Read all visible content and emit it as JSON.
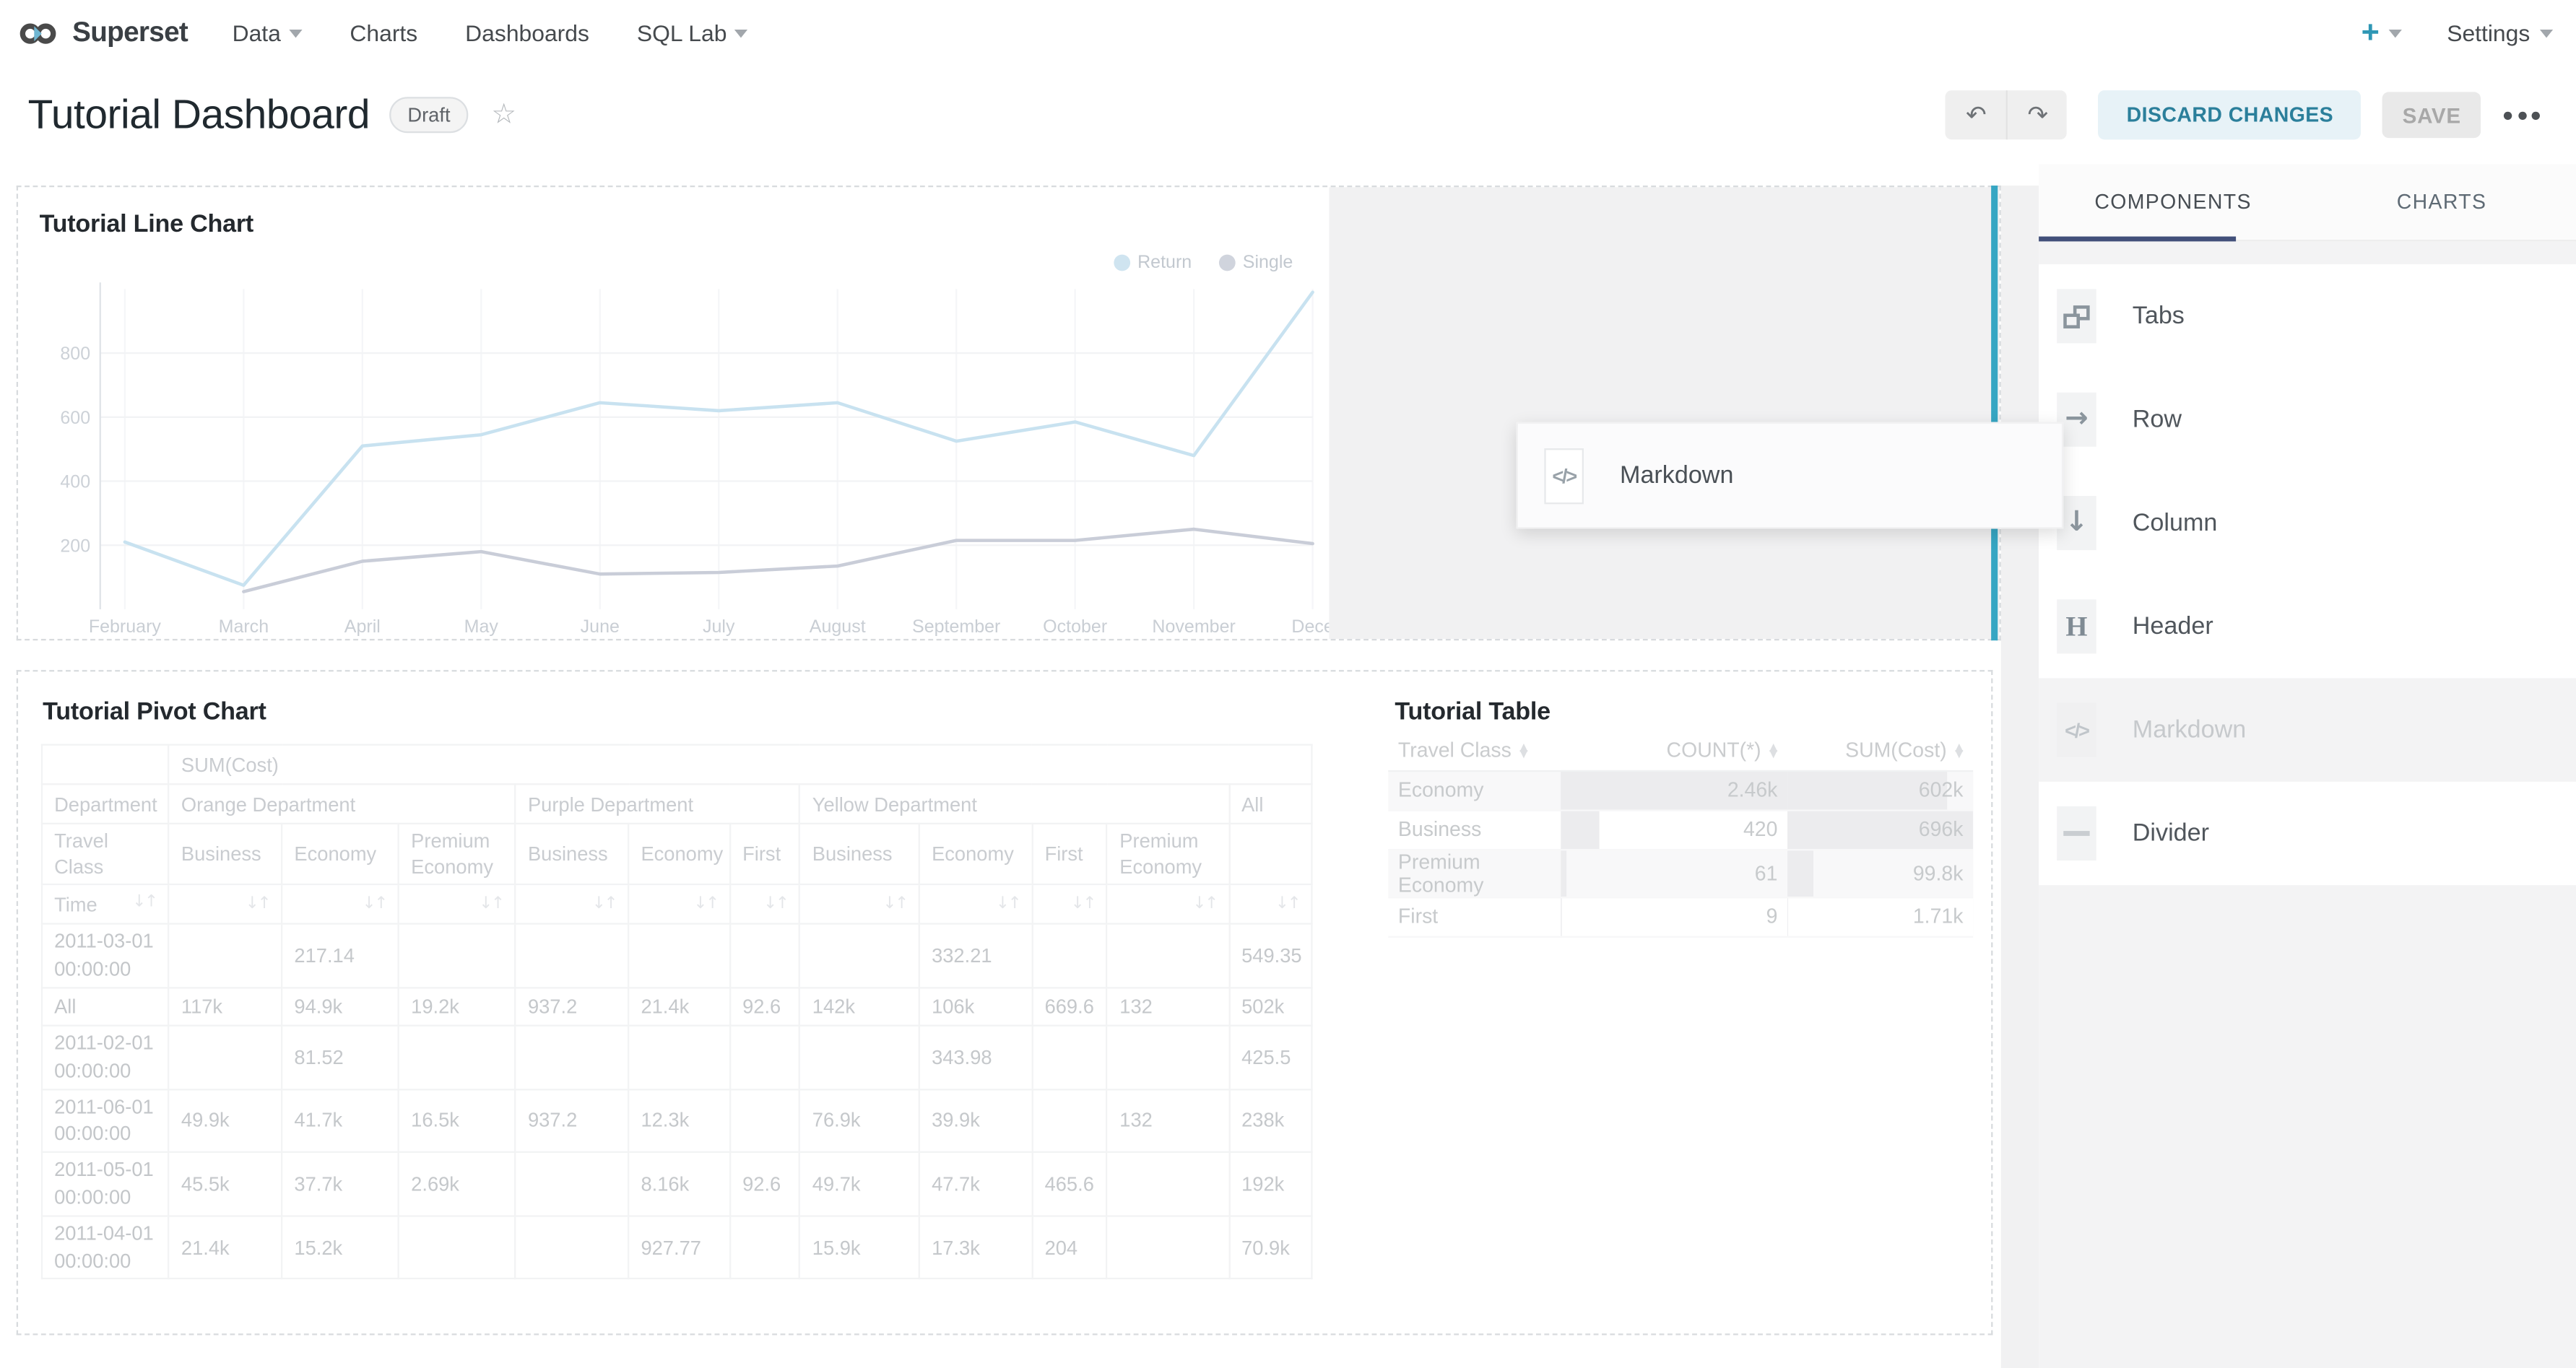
{
  "navbar": {
    "brand": "Superset",
    "logo_icon": "superset-infinity-logo",
    "items": [
      {
        "label": "Data",
        "caret": true
      },
      {
        "label": "Charts",
        "caret": false
      },
      {
        "label": "Dashboards",
        "caret": false
      },
      {
        "label": "SQL Lab",
        "caret": true
      }
    ],
    "new_button_label": "+",
    "settings_label": "Settings"
  },
  "header": {
    "title": "Tutorial Dashboard",
    "status_badge": "Draft",
    "favorite_icon": "star-outline",
    "undo_icon": "↶",
    "redo_icon": "↷",
    "discard_label": "DISCARD CHANGES",
    "save_label": "SAVE",
    "more_icon": "ellipsis"
  },
  "drag_preview": {
    "label": "Markdown",
    "icon": "code-markdown-icon"
  },
  "sidebar": {
    "tabs": [
      {
        "label": "COMPONENTS",
        "active": true
      },
      {
        "label": "CHARTS",
        "active": false
      }
    ],
    "components": [
      {
        "label": "Tabs",
        "icon": "tabs-icon",
        "ghost": false
      },
      {
        "label": "Row",
        "icon": "row-arrow-icon",
        "ghost": false
      },
      {
        "label": "Column",
        "icon": "column-arrow-icon",
        "ghost": false
      },
      {
        "label": "Header",
        "icon": "header-icon",
        "ghost": false
      },
      {
        "label": "Markdown",
        "icon": "code-markdown-icon",
        "ghost": true
      },
      {
        "label": "Divider",
        "icon": "divider-icon",
        "ghost": false
      }
    ]
  },
  "accent_colors": {
    "primary_teal": "#36a6c3",
    "discard_bg": "#e7f2f7",
    "discard_text": "#2b7f9b",
    "tab_ink": "#42507a"
  },
  "chart_data": [
    {
      "type": "line",
      "title": "Tutorial Line Chart",
      "x": [
        "February",
        "March",
        "April",
        "May",
        "June",
        "July",
        "August",
        "September",
        "October",
        "November",
        "Dece"
      ],
      "series": [
        {
          "name": "Return",
          "color": "#c8e2f0",
          "dot_color": "#cfe4f0",
          "values": [
            210,
            75,
            510,
            545,
            645,
            620,
            645,
            525,
            585,
            480,
            990
          ]
        },
        {
          "name": "Single",
          "color": "#c9cdd8",
          "dot_color": "#d0d4dd",
          "values": [
            null,
            55,
            150,
            180,
            110,
            115,
            135,
            215,
            215,
            250,
            205
          ]
        }
      ],
      "ylim": [
        0,
        1000
      ],
      "yticks": [
        200,
        400,
        600,
        800
      ],
      "grid": true,
      "legend_position": "top-right"
    },
    {
      "type": "table",
      "title": "Tutorial Pivot Chart",
      "metric_header": "SUM(Cost)",
      "col_groups": [
        {
          "label": "Department",
          "span": 1
        },
        {
          "label": "Orange Department",
          "span": 3
        },
        {
          "label": "Purple Department",
          "span": 3
        },
        {
          "label": "Yellow Department",
          "span": 4
        },
        {
          "label": "All",
          "span": 1
        }
      ],
      "col_leaves": [
        "Travel Class",
        "Business",
        "Economy",
        "Premium Economy",
        "Business",
        "Economy",
        "First",
        "Business",
        "Economy",
        "First",
        "Premium Economy",
        ""
      ],
      "sort_row_label": "Time",
      "rows": [
        {
          "label": "2011-03-01 00:00:00",
          "values": [
            "",
            "217.14",
            "",
            "",
            "",
            "",
            "",
            "332.21",
            "",
            "",
            "549.35"
          ]
        },
        {
          "label": "All",
          "values": [
            "117k",
            "94.9k",
            "19.2k",
            "937.2",
            "21.4k",
            "92.6",
            "142k",
            "106k",
            "669.6",
            "132",
            "502k"
          ]
        },
        {
          "label": "2011-02-01 00:00:00",
          "values": [
            "",
            "81.52",
            "",
            "",
            "",
            "",
            "",
            "343.98",
            "",
            "",
            "425.5"
          ]
        },
        {
          "label": "2011-06-01 00:00:00",
          "values": [
            "49.9k",
            "41.7k",
            "16.5k",
            "937.2",
            "12.3k",
            "",
            "76.9k",
            "39.9k",
            "",
            "132",
            "238k"
          ]
        },
        {
          "label": "2011-05-01 00:00:00",
          "values": [
            "45.5k",
            "37.7k",
            "2.69k",
            "",
            "8.16k",
            "92.6",
            "49.7k",
            "47.7k",
            "465.6",
            "",
            "192k"
          ]
        },
        {
          "label": "2011-04-01 00:00:00",
          "values": [
            "21.4k",
            "15.2k",
            "",
            "",
            "927.77",
            "",
            "15.9k",
            "17.3k",
            "204",
            "",
            "70.9k"
          ]
        }
      ]
    },
    {
      "type": "table",
      "title": "Tutorial Table",
      "columns": [
        "Travel Class",
        "COUNT(*)",
        "SUM(Cost)"
      ],
      "rows": [
        {
          "travel_class": "Economy",
          "count": "2.46k",
          "sum": "602k",
          "count_bar": 100,
          "sum_bar": 86
        },
        {
          "travel_class": "Business",
          "count": "420",
          "sum": "696k",
          "count_bar": 17,
          "sum_bar": 100
        },
        {
          "travel_class": "Premium Economy",
          "count": "61",
          "sum": "99.8k",
          "count_bar": 2.5,
          "sum_bar": 14
        },
        {
          "travel_class": "First",
          "count": "9",
          "sum": "1.71k",
          "count_bar": 0.5,
          "sum_bar": 0.4
        }
      ]
    }
  ]
}
